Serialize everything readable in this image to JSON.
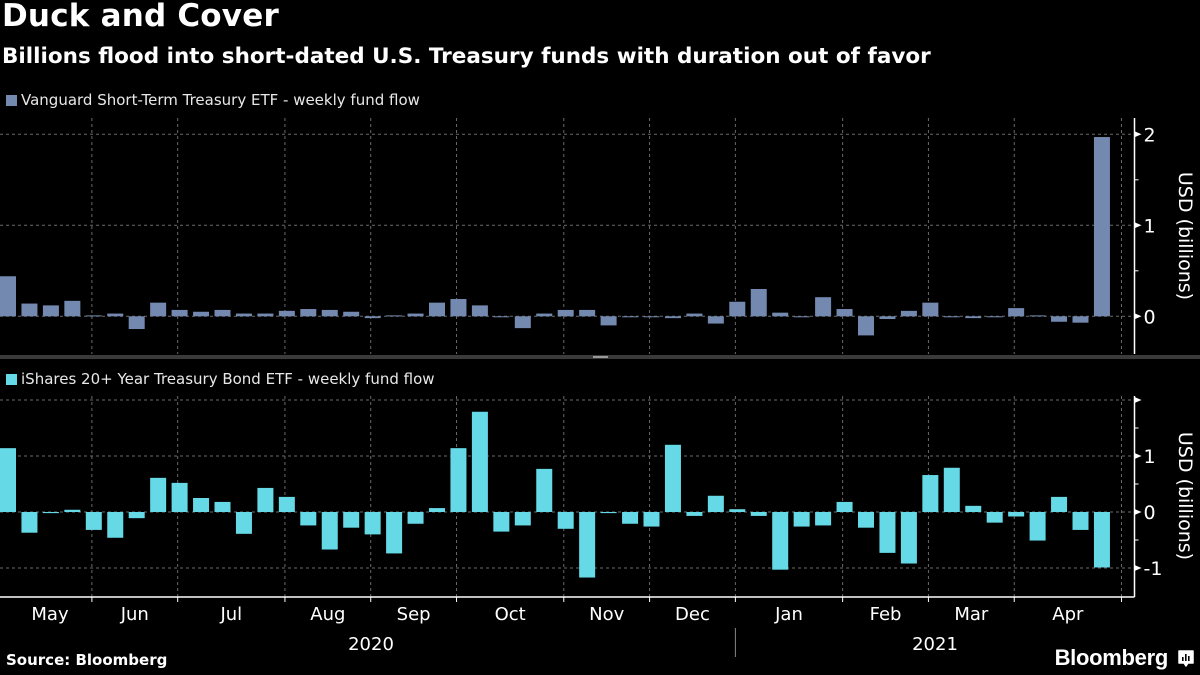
{
  "title": "Duck and Cover",
  "subtitle": "Billions flood into short-dated U.S. Treasury funds with duration out of favor",
  "source": "Source: Bloomberg",
  "brand": "Bloomberg",
  "brand_icon": "bloomberg-chart-bubble-icon",
  "colors": {
    "background": "#000000",
    "series1": "#7389b0",
    "series2": "#65d9e6",
    "grid": "#6a6a6a",
    "separator": "#3a3a3a"
  },
  "chart_data": [
    {
      "type": "bar",
      "legend": "Vanguard Short-Term Treasury ETF - weekly fund flow",
      "ylabel": "USD (billions)",
      "ylim": [
        -0.42,
        2.15
      ],
      "yticks": [
        0,
        1,
        2
      ],
      "ytick_labels": [
        "0",
        "1",
        "2"
      ],
      "grid": true,
      "color": "#7389b0",
      "values": [
        0.44,
        0.14,
        0.12,
        0.17,
        0.01,
        0.03,
        -0.14,
        0.15,
        0.07,
        0.05,
        0.07,
        0.03,
        0.03,
        0.06,
        0.08,
        0.07,
        0.05,
        -0.02,
        0.01,
        0.03,
        0.15,
        0.19,
        0.12,
        -0.01,
        -0.13,
        0.03,
        0.07,
        0.07,
        -0.1,
        -0.01,
        -0.01,
        -0.02,
        0.03,
        -0.08,
        0.16,
        0.3,
        0.04,
        -0.01,
        0.21,
        0.08,
        -0.21,
        -0.03,
        0.06,
        0.15,
        -0.01,
        -0.02,
        -0.01,
        0.09,
        0.01,
        -0.06,
        -0.07,
        1.97
      ]
    },
    {
      "type": "bar",
      "legend": "iShares 20+ Year Treasury Bond ETF - weekly fund flow",
      "ylabel": "USD (billions)",
      "ylim": [
        -1.4,
        2.05
      ],
      "yticks": [
        -1,
        0,
        1,
        2
      ],
      "ytick_labels": [
        "-1",
        "0",
        "1",
        ""
      ],
      "grid": true,
      "color": "#65d9e6",
      "values": [
        1.14,
        -0.37,
        -0.02,
        0.04,
        -0.32,
        -0.46,
        -0.11,
        0.61,
        0.52,
        0.25,
        0.18,
        -0.39,
        0.43,
        0.27,
        -0.24,
        -0.67,
        -0.28,
        -0.4,
        -0.74,
        -0.21,
        0.07,
        1.14,
        1.79,
        -0.35,
        -0.24,
        0.77,
        -0.3,
        -1.17,
        -0.02,
        -0.21,
        -0.26,
        1.2,
        -0.07,
        0.29,
        0.05,
        -0.07,
        -1.03,
        -0.26,
        -0.24,
        0.18,
        -0.28,
        -0.73,
        -0.92,
        0.66,
        0.79,
        0.11,
        -0.19,
        -0.08,
        -0.51,
        0.27,
        -0.32,
        -0.99
      ]
    }
  ],
  "x_axis": {
    "months": [
      "May",
      "Jun",
      "Jul",
      "Aug",
      "Sep",
      "Oct",
      "Nov",
      "Dec",
      "Jan",
      "Feb",
      "Mar",
      "Apr"
    ],
    "month_start_week": [
      0,
      4.4,
      8.4,
      13.4,
      17.4,
      21.4,
      26.4,
      30.4,
      34.4,
      39.4,
      43.4,
      47.4,
      52.4
    ],
    "years": [
      "2020",
      "2021"
    ],
    "year_split_week": 34.4
  }
}
